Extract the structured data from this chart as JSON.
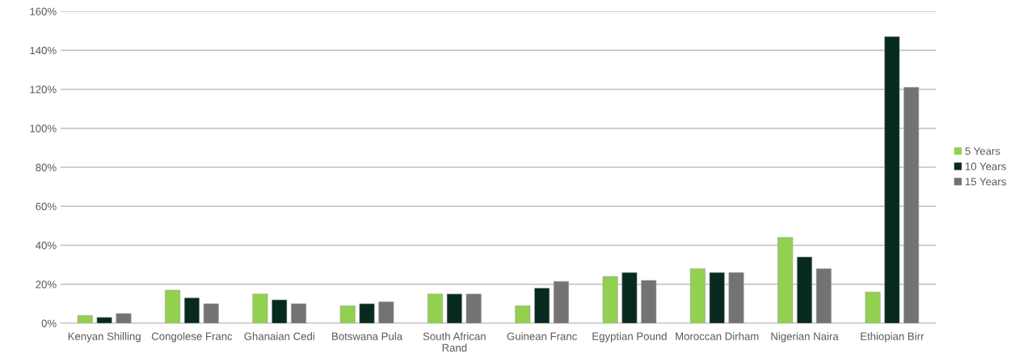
{
  "chart_data": {
    "type": "bar",
    "categories": [
      "Kenyan Shilling",
      "Congolese Franc",
      "Ghanaian Cedi",
      "Botswana Pula",
      "South African\nRand",
      "Guinean Franc",
      "Egyptian Pound",
      "Moroccan Dirham",
      "Nigerian Naira",
      "Ethiopian Birr"
    ],
    "series": [
      {
        "name": "5 Years",
        "color": "#92d050",
        "values": [
          4,
          17,
          15,
          9,
          15,
          9,
          24,
          28,
          44,
          16
        ]
      },
      {
        "name": "10 Years",
        "color": "#072a20",
        "values": [
          3,
          13,
          12,
          10,
          15,
          18,
          26,
          26,
          34,
          147
        ]
      },
      {
        "name": "15 Years",
        "color": "#737373",
        "values": [
          5,
          10,
          10,
          11,
          15,
          21.5,
          22,
          26,
          28,
          121
        ]
      }
    ],
    "ylim": [
      0,
      160
    ],
    "yticks": [
      {
        "value": 0,
        "label": "0%"
      },
      {
        "value": 20,
        "label": "20%"
      },
      {
        "value": 40,
        "label": "40%"
      },
      {
        "value": 60,
        "label": "60%"
      },
      {
        "value": 80,
        "label": "80%"
      },
      {
        "value": 100,
        "label": "100%"
      },
      {
        "value": 120,
        "label": "120%"
      },
      {
        "value": 140,
        "label": "140%"
      },
      {
        "value": 160,
        "label": "160%"
      }
    ],
    "grid": "y",
    "legend": "right"
  }
}
